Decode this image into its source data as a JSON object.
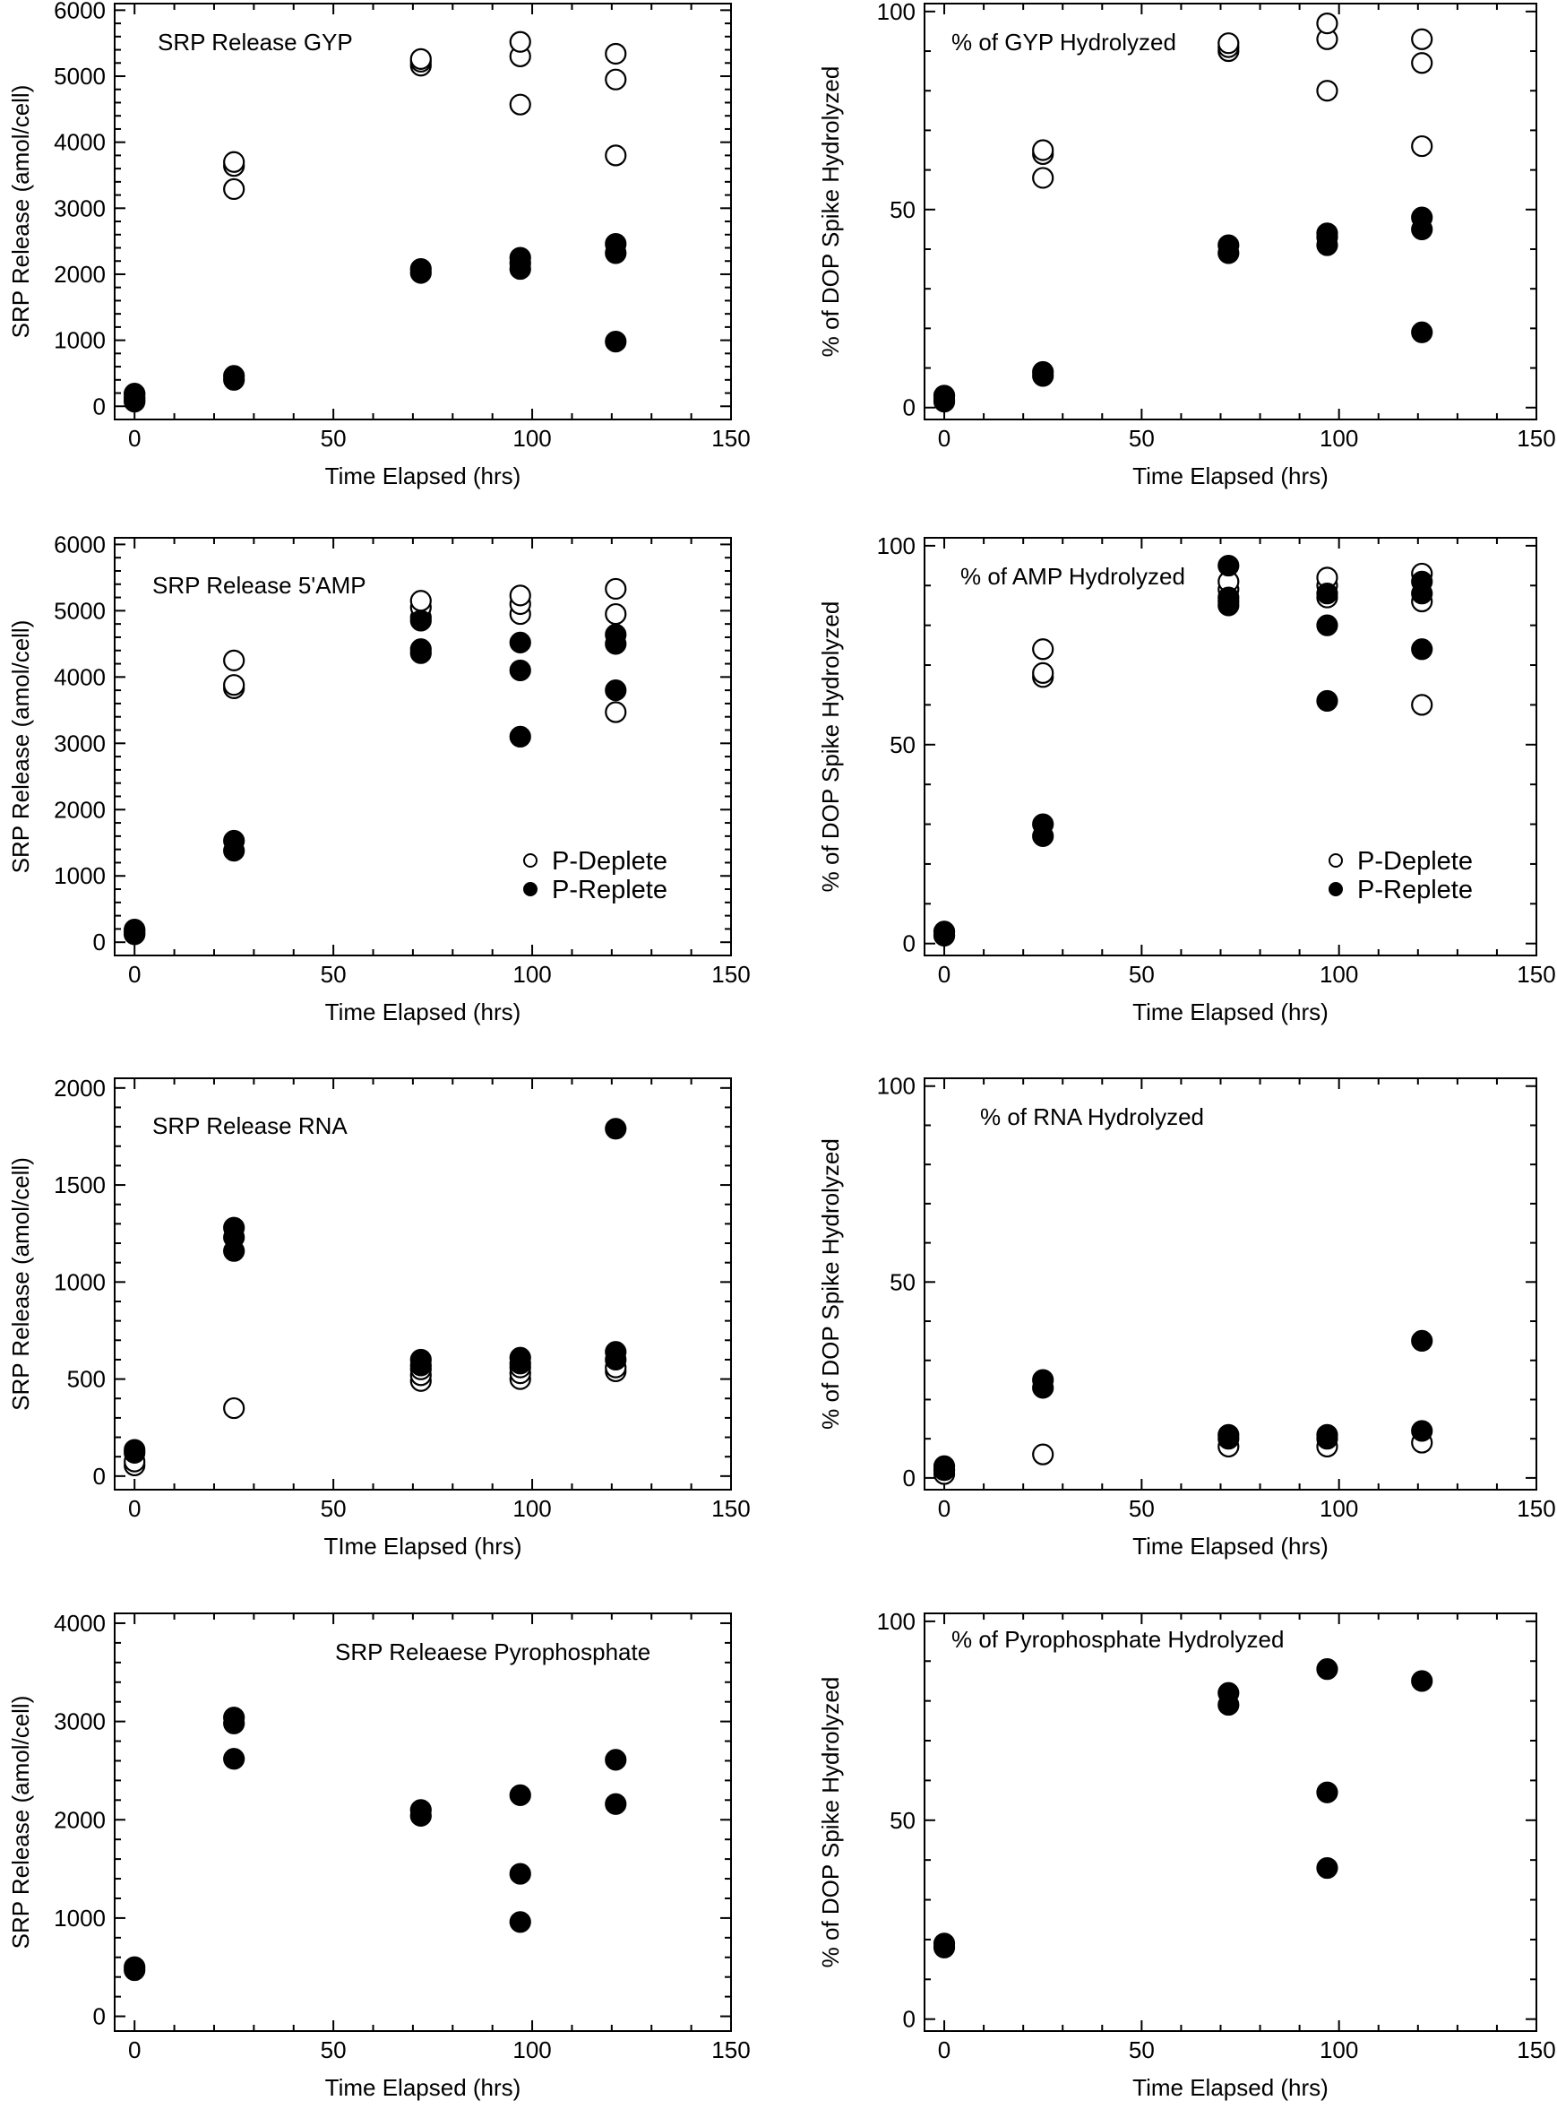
{
  "legend_labels": {
    "open": "P-Deplete",
    "filled": "P-Replete"
  },
  "chart_data": [
    {
      "id": "gyp-srp",
      "type": "scatter",
      "title": "SRP Release GYP",
      "xlabel": "Time Elapsed (hrs)",
      "ylabel": "SRP Release (amol/cell)",
      "xlim": [
        -5,
        150
      ],
      "ylim": [
        -200,
        6100
      ],
      "xticks": [
        0,
        50,
        100,
        150
      ],
      "yticks": [
        0,
        1000,
        2000,
        3000,
        4000,
        5000,
        6000
      ],
      "grid": false,
      "legend": "none",
      "series": [
        {
          "name": "P-Deplete",
          "marker": "open",
          "points": [
            [
              0,
              80
            ],
            [
              0,
              130
            ],
            [
              0,
              190
            ],
            [
              25,
              3290
            ],
            [
              25,
              3640
            ],
            [
              25,
              3700
            ],
            [
              72,
              5160
            ],
            [
              72,
              5220
            ],
            [
              72,
              5260
            ],
            [
              97,
              4570
            ],
            [
              97,
              5300
            ],
            [
              97,
              5520
            ],
            [
              121,
              3800
            ],
            [
              121,
              4950
            ],
            [
              121,
              5340
            ]
          ]
        },
        {
          "name": "P-Replete",
          "marker": "filled",
          "points": [
            [
              0,
              70
            ],
            [
              0,
              120
            ],
            [
              0,
              190
            ],
            [
              25,
              400
            ],
            [
              25,
              460
            ],
            [
              72,
              2020
            ],
            [
              72,
              2080
            ],
            [
              97,
              2080
            ],
            [
              97,
              2170
            ],
            [
              97,
              2250
            ],
            [
              121,
              980
            ],
            [
              121,
              2320
            ],
            [
              121,
              2460
            ]
          ]
        }
      ]
    },
    {
      "id": "gyp-pct",
      "type": "scatter",
      "title": "% of GYP Hydrolyzed",
      "xlabel": "Time Elapsed (hrs)",
      "ylabel": "% of DOP Spike Hydrolyzed",
      "xlim": [
        -5,
        150
      ],
      "ylim": [
        -3,
        102
      ],
      "xticks": [
        0,
        50,
        100,
        150
      ],
      "yticks": [
        0,
        50,
        100
      ],
      "grid": false,
      "legend": "none",
      "series": [
        {
          "name": "P-Deplete",
          "marker": "open",
          "points": [
            [
              0,
              2
            ],
            [
              0,
              3
            ],
            [
              25,
              58
            ],
            [
              25,
              64
            ],
            [
              25,
              65
            ],
            [
              72,
              90
            ],
            [
              72,
              91
            ],
            [
              72,
              92
            ],
            [
              97,
              80
            ],
            [
              97,
              93
            ],
            [
              97,
              97
            ],
            [
              121,
              66
            ],
            [
              121,
              87
            ],
            [
              121,
              93
            ]
          ]
        },
        {
          "name": "P-Replete",
          "marker": "filled",
          "points": [
            [
              0,
              1.5
            ],
            [
              0,
              3
            ],
            [
              25,
              8
            ],
            [
              25,
              9
            ],
            [
              72,
              39
            ],
            [
              72,
              41
            ],
            [
              97,
              41
            ],
            [
              97,
              43
            ],
            [
              97,
              44
            ],
            [
              121,
              19
            ],
            [
              121,
              45
            ],
            [
              121,
              48
            ]
          ]
        }
      ]
    },
    {
      "id": "amp-srp",
      "type": "scatter",
      "title": "SRP Release 5'AMP",
      "xlabel": "Time Elapsed (hrs)",
      "ylabel": "SRP Release (amol/cell)",
      "xlim": [
        -5,
        150
      ],
      "ylim": [
        -200,
        6100
      ],
      "xticks": [
        0,
        50,
        100,
        150
      ],
      "yticks": [
        0,
        1000,
        2000,
        3000,
        4000,
        5000,
        6000
      ],
      "grid": false,
      "legend": "bottom-right",
      "series": [
        {
          "name": "P-Deplete",
          "marker": "open",
          "points": [
            [
              0,
              130
            ],
            [
              0,
              190
            ],
            [
              25,
              3830
            ],
            [
              25,
              3880
            ],
            [
              25,
              4250
            ],
            [
              72,
              4900
            ],
            [
              72,
              5050
            ],
            [
              72,
              5150
            ],
            [
              97,
              4950
            ],
            [
              97,
              5100
            ],
            [
              97,
              5230
            ],
            [
              121,
              3470
            ],
            [
              121,
              4950
            ],
            [
              121,
              5330
            ]
          ]
        },
        {
          "name": "P-Replete",
          "marker": "filled",
          "points": [
            [
              0,
              120
            ],
            [
              0,
              170
            ],
            [
              25,
              1380
            ],
            [
              25,
              1530
            ],
            [
              72,
              4360
            ],
            [
              72,
              4420
            ],
            [
              72,
              4850
            ],
            [
              97,
              3100
            ],
            [
              97,
              4100
            ],
            [
              97,
              4520
            ],
            [
              121,
              3800
            ],
            [
              121,
              4500
            ],
            [
              121,
              4640
            ]
          ]
        }
      ]
    },
    {
      "id": "amp-pct",
      "type": "scatter",
      "title": "% of AMP Hydrolyzed",
      "xlabel": "Time Elapsed (hrs)",
      "ylabel": "% of DOP Spike Hydrolyzed",
      "xlim": [
        -5,
        150
      ],
      "ylim": [
        -3,
        102
      ],
      "xticks": [
        0,
        50,
        100,
        150
      ],
      "yticks": [
        0,
        50,
        100
      ],
      "grid": false,
      "legend": "bottom-right",
      "series": [
        {
          "name": "P-Deplete",
          "marker": "open",
          "points": [
            [
              0,
              2
            ],
            [
              0,
              3
            ],
            [
              25,
              67
            ],
            [
              25,
              68
            ],
            [
              25,
              74
            ],
            [
              72,
              86
            ],
            [
              72,
              89
            ],
            [
              72,
              91
            ],
            [
              97,
              87
            ],
            [
              97,
              90
            ],
            [
              97,
              92
            ],
            [
              121,
              60
            ],
            [
              121,
              86
            ],
            [
              121,
              93
            ]
          ]
        },
        {
          "name": "P-Replete",
          "marker": "filled",
          "points": [
            [
              0,
              2
            ],
            [
              0,
              3
            ],
            [
              25,
              27
            ],
            [
              25,
              30
            ],
            [
              72,
              85
            ],
            [
              72,
              87
            ],
            [
              72,
              95
            ],
            [
              97,
              61
            ],
            [
              97,
              80
            ],
            [
              97,
              88
            ],
            [
              121,
              74
            ],
            [
              121,
              88
            ],
            [
              121,
              91
            ]
          ]
        }
      ]
    },
    {
      "id": "rna-srp",
      "type": "scatter",
      "title": "SRP Release RNA",
      "xlabel": "TIme Elapsed (hrs)",
      "ylabel": "SRP Release (amol/cell)",
      "xlim": [
        -5,
        150
      ],
      "ylim": [
        -70,
        2050
      ],
      "xticks": [
        0,
        50,
        100,
        150
      ],
      "yticks": [
        0,
        500,
        1000,
        1500,
        2000
      ],
      "grid": false,
      "legend": "none",
      "series": [
        {
          "name": "P-Deplete",
          "marker": "open",
          "points": [
            [
              0,
              55
            ],
            [
              0,
              75
            ],
            [
              25,
              350
            ],
            [
              72,
              490
            ],
            [
              72,
              520
            ],
            [
              72,
              550
            ],
            [
              97,
              500
            ],
            [
              97,
              530
            ],
            [
              97,
              560
            ],
            [
              121,
              540
            ],
            [
              121,
              560
            ]
          ]
        },
        {
          "name": "P-Replete",
          "marker": "filled",
          "points": [
            [
              0,
              120
            ],
            [
              0,
              135
            ],
            [
              25,
              1160
            ],
            [
              25,
              1230
            ],
            [
              25,
              1280
            ],
            [
              72,
              570
            ],
            [
              72,
              600
            ],
            [
              97,
              580
            ],
            [
              97,
              610
            ],
            [
              121,
              600
            ],
            [
              121,
              640
            ],
            [
              121,
              1790
            ]
          ]
        }
      ]
    },
    {
      "id": "rna-pct",
      "type": "scatter",
      "title": "% of RNA Hydrolyzed",
      "xlabel": "Time Elapsed (hrs)",
      "ylabel": "% of DOP Spike Hydrolyzed",
      "xlim": [
        -5,
        150
      ],
      "ylim": [
        -3,
        102
      ],
      "xticks": [
        0,
        50,
        100,
        150
      ],
      "yticks": [
        0,
        50,
        100
      ],
      "grid": false,
      "legend": "none",
      "series": [
        {
          "name": "P-Deplete",
          "marker": "open",
          "points": [
            [
              0,
              1
            ],
            [
              0,
              2
            ],
            [
              25,
              6
            ],
            [
              72,
              8
            ],
            [
              97,
              8
            ],
            [
              121,
              9
            ]
          ]
        },
        {
          "name": "P-Replete",
          "marker": "filled",
          "points": [
            [
              0,
              2
            ],
            [
              0,
              3
            ],
            [
              25,
              23
            ],
            [
              25,
              25
            ],
            [
              72,
              10
            ],
            [
              72,
              11
            ],
            [
              97,
              10
            ],
            [
              97,
              11
            ],
            [
              121,
              12
            ],
            [
              121,
              35
            ]
          ]
        }
      ]
    },
    {
      "id": "ppi-srp",
      "type": "scatter",
      "title": "SRP Releaese Pyrophosphate",
      "xlabel": "Time Elapsed (hrs)",
      "ylabel": "SRP Release (amol/cell)",
      "xlim": [
        -5,
        150
      ],
      "ylim": [
        -150,
        4100
      ],
      "xticks": [
        0,
        50,
        100,
        150
      ],
      "yticks": [
        0,
        1000,
        2000,
        3000,
        4000
      ],
      "grid": false,
      "legend": "none",
      "series": [
        {
          "name": "P-Replete",
          "marker": "filled",
          "points": [
            [
              0,
              470
            ],
            [
              0,
              500
            ],
            [
              25,
              2620
            ],
            [
              25,
              2980
            ],
            [
              25,
              3040
            ],
            [
              72,
              2040
            ],
            [
              72,
              2100
            ],
            [
              97,
              960
            ],
            [
              97,
              1450
            ],
            [
              97,
              2250
            ],
            [
              121,
              2160
            ],
            [
              121,
              2610
            ]
          ]
        }
      ]
    },
    {
      "id": "ppi-pct",
      "type": "scatter",
      "title": "% of Pyrophosphate Hydrolyzed",
      "xlabel": "Time Elapsed (hrs)",
      "ylabel": "% of DOP Spike Hydrolyzed",
      "xlim": [
        -5,
        150
      ],
      "ylim": [
        -3,
        102
      ],
      "xticks": [
        0,
        50,
        100,
        150
      ],
      "yticks": [
        0,
        50,
        100
      ],
      "grid": false,
      "legend": "none",
      "series": [
        {
          "name": "P-Replete",
          "marker": "filled",
          "points": [
            [
              0,
              18
            ],
            [
              0,
              19
            ],
            [
              72,
              79
            ],
            [
              72,
              82
            ],
            [
              97,
              38
            ],
            [
              97,
              57
            ],
            [
              97,
              88
            ],
            [
              121,
              85
            ]
          ]
        }
      ]
    }
  ]
}
